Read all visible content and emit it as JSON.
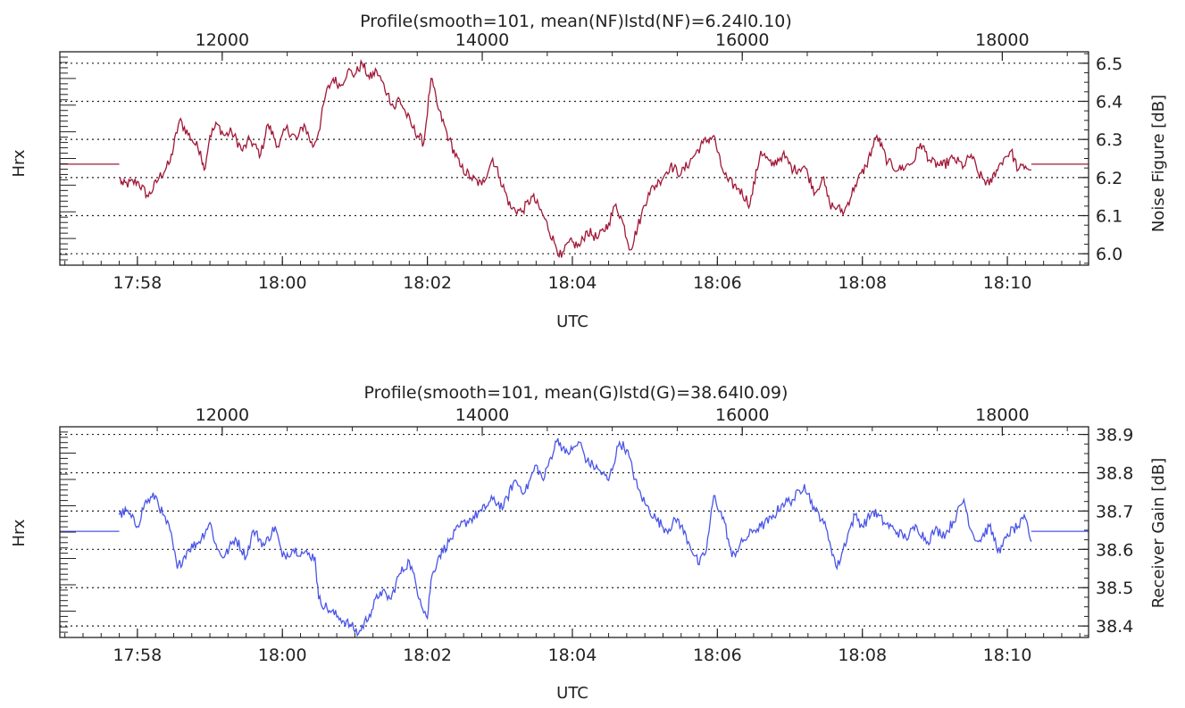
{
  "chart_data": [
    {
      "type": "line",
      "title": "Profile(smooth=101, mean(NF)lstd(NF)=6.24l0.10)",
      "xlabel": "UTC",
      "ylabel_left": "Hrx",
      "ylabel": "Noise Figure [dB]",
      "x_ticks": [
        "17:58",
        "18:00",
        "18:02",
        "18:04",
        "18:06",
        "18:08",
        "18:10"
      ],
      "x_tick_minutes": [
        118,
        120,
        122,
        124,
        126,
        128,
        130
      ],
      "xlim_minutes": [
        116.93,
        131.12
      ],
      "top_axis_ticks": [
        "12000",
        "14000",
        "16000",
        "18000"
      ],
      "top_axis_values": [
        12000,
        14000,
        16000,
        18000
      ],
      "top_axis_minute_at": [
        [
          12000,
          119.17
        ],
        [
          18000,
          129.93
        ]
      ],
      "yticks": [
        6.0,
        6.1,
        6.2,
        6.3,
        6.4,
        6.5
      ],
      "ylim": [
        5.97,
        6.53
      ],
      "grid": "horizontal dotted",
      "color": "#a01838",
      "fill_value": 6.235,
      "data_start_minute": 117.75,
      "data_end_minute": 130.33,
      "series": [
        {
          "x_minutes": [
            117.75,
            117.8,
            118.0,
            118.15,
            118.3,
            118.45,
            118.58,
            118.75,
            118.87,
            118.92,
            119.0,
            119.1,
            119.2,
            119.3,
            119.45,
            119.55,
            119.7,
            119.8,
            119.95,
            120.05,
            120.2,
            120.3,
            120.42,
            120.5,
            120.6,
            120.7,
            120.8,
            120.9,
            121.0,
            121.1,
            121.2,
            121.3,
            121.45,
            121.55,
            121.6,
            121.7,
            121.8,
            121.95,
            122.05,
            122.15,
            122.3,
            122.45,
            122.6,
            122.75,
            122.9,
            123.0,
            123.15,
            123.3,
            123.45,
            123.6,
            123.75,
            123.85,
            123.95,
            124.1,
            124.2,
            124.35,
            124.5,
            124.6,
            124.7,
            124.8,
            124.95,
            125.05,
            125.2,
            125.35,
            125.5,
            125.65,
            125.8,
            125.95,
            126.05,
            126.15,
            126.3,
            126.45,
            126.6,
            126.75,
            126.9,
            127.05,
            127.2,
            127.35,
            127.45,
            127.55,
            127.65,
            127.75,
            127.9,
            128.05,
            128.2,
            128.35,
            128.5,
            128.6,
            128.7,
            128.8,
            128.95,
            129.1,
            129.25,
            129.4,
            129.5,
            129.6,
            129.75,
            129.85,
            129.95,
            130.05,
            130.15,
            130.25,
            130.33
          ],
          "y": [
            6.2,
            6.18,
            6.19,
            6.15,
            6.2,
            6.24,
            6.35,
            6.3,
            6.27,
            6.22,
            6.31,
            6.34,
            6.31,
            6.32,
            6.27,
            6.3,
            6.26,
            6.34,
            6.28,
            6.33,
            6.3,
            6.34,
            6.28,
            6.32,
            6.42,
            6.46,
            6.44,
            6.48,
            6.47,
            6.5,
            6.46,
            6.48,
            6.42,
            6.38,
            6.41,
            6.37,
            6.33,
            6.29,
            6.46,
            6.38,
            6.3,
            6.23,
            6.2,
            6.18,
            6.25,
            6.2,
            6.12,
            6.11,
            6.15,
            6.1,
            6.03,
            5.99,
            6.03,
            6.02,
            6.06,
            6.04,
            6.08,
            6.13,
            6.08,
            6.01,
            6.1,
            6.16,
            6.19,
            6.23,
            6.21,
            6.25,
            6.29,
            6.31,
            6.23,
            6.19,
            6.17,
            6.13,
            6.27,
            6.23,
            6.26,
            6.22,
            6.23,
            6.16,
            6.2,
            6.13,
            6.12,
            6.11,
            6.18,
            6.23,
            6.31,
            6.24,
            6.22,
            6.23,
            6.24,
            6.29,
            6.24,
            6.23,
            6.25,
            6.23,
            6.26,
            6.21,
            6.18,
            6.22,
            6.25,
            6.27,
            6.22,
            6.23,
            6.22
          ]
        }
      ]
    },
    {
      "type": "line",
      "title": "Profile(smooth=101, mean(G)lstd(G)=38.64l0.09)",
      "xlabel": "UTC",
      "ylabel_left": "Hrx",
      "ylabel": "Receiver Gain [dB]",
      "x_ticks": [
        "17:58",
        "18:00",
        "18:02",
        "18:04",
        "18:06",
        "18:08",
        "18:10"
      ],
      "x_tick_minutes": [
        118,
        120,
        122,
        124,
        126,
        128,
        130
      ],
      "xlim_minutes": [
        116.93,
        131.12
      ],
      "top_axis_ticks": [
        "12000",
        "14000",
        "16000",
        "18000"
      ],
      "top_axis_values": [
        12000,
        14000,
        16000,
        18000
      ],
      "top_axis_minute_at": [
        [
          12000,
          119.17
        ],
        [
          18000,
          129.93
        ]
      ],
      "yticks": [
        38.4,
        38.5,
        38.6,
        38.7,
        38.8,
        38.9
      ],
      "ylim": [
        38.37,
        38.92
      ],
      "grid": "horizontal dotted",
      "color": "#4a55e6",
      "fill_value": 38.647,
      "data_start_minute": 117.75,
      "data_end_minute": 130.33,
      "series": [
        {
          "x_minutes": [
            117.75,
            117.85,
            118.0,
            118.1,
            118.25,
            118.35,
            118.45,
            118.55,
            118.7,
            118.85,
            119.0,
            119.1,
            119.2,
            119.35,
            119.5,
            119.6,
            119.75,
            119.9,
            120.0,
            120.15,
            120.3,
            120.45,
            120.5,
            120.65,
            120.8,
            120.95,
            121.05,
            121.2,
            121.35,
            121.5,
            121.6,
            121.75,
            121.9,
            122.0,
            122.05,
            122.15,
            122.3,
            122.45,
            122.6,
            122.75,
            122.9,
            123.05,
            123.2,
            123.35,
            123.5,
            123.6,
            123.7,
            123.8,
            123.9,
            124.0,
            124.1,
            124.2,
            124.35,
            124.5,
            124.65,
            124.75,
            124.9,
            125.0,
            125.15,
            125.3,
            125.45,
            125.6,
            125.75,
            125.85,
            125.95,
            126.1,
            126.2,
            126.35,
            126.5,
            126.6,
            126.75,
            126.9,
            127.05,
            127.2,
            127.35,
            127.45,
            127.55,
            127.65,
            127.8,
            127.9,
            128.0,
            128.15,
            128.3,
            128.45,
            128.6,
            128.75,
            128.9,
            129.0,
            129.15,
            129.3,
            129.4,
            129.5,
            129.6,
            129.75,
            129.9,
            130.0,
            130.15,
            130.25,
            130.33
          ],
          "y": [
            38.69,
            38.7,
            38.66,
            38.72,
            38.74,
            38.69,
            38.65,
            38.55,
            38.6,
            38.62,
            38.67,
            38.6,
            38.58,
            38.63,
            38.58,
            38.65,
            38.61,
            38.66,
            38.58,
            38.6,
            38.59,
            38.58,
            38.47,
            38.44,
            38.42,
            38.4,
            38.38,
            38.43,
            38.49,
            38.47,
            38.53,
            38.57,
            38.47,
            38.42,
            38.52,
            38.58,
            38.62,
            38.66,
            38.68,
            38.7,
            38.73,
            38.71,
            38.78,
            38.75,
            38.82,
            38.78,
            38.84,
            38.89,
            38.85,
            38.86,
            38.88,
            38.83,
            38.81,
            38.78,
            38.88,
            38.86,
            38.76,
            38.72,
            38.68,
            38.65,
            38.68,
            38.62,
            38.56,
            38.6,
            38.74,
            38.67,
            38.58,
            38.62,
            38.65,
            38.66,
            38.68,
            38.72,
            38.73,
            38.77,
            38.7,
            38.68,
            38.62,
            38.55,
            38.64,
            38.69,
            38.66,
            38.7,
            38.67,
            38.65,
            38.63,
            38.66,
            38.62,
            38.65,
            38.64,
            38.69,
            38.73,
            38.65,
            38.62,
            38.66,
            38.59,
            38.64,
            38.66,
            38.68,
            38.62
          ]
        }
      ]
    }
  ]
}
